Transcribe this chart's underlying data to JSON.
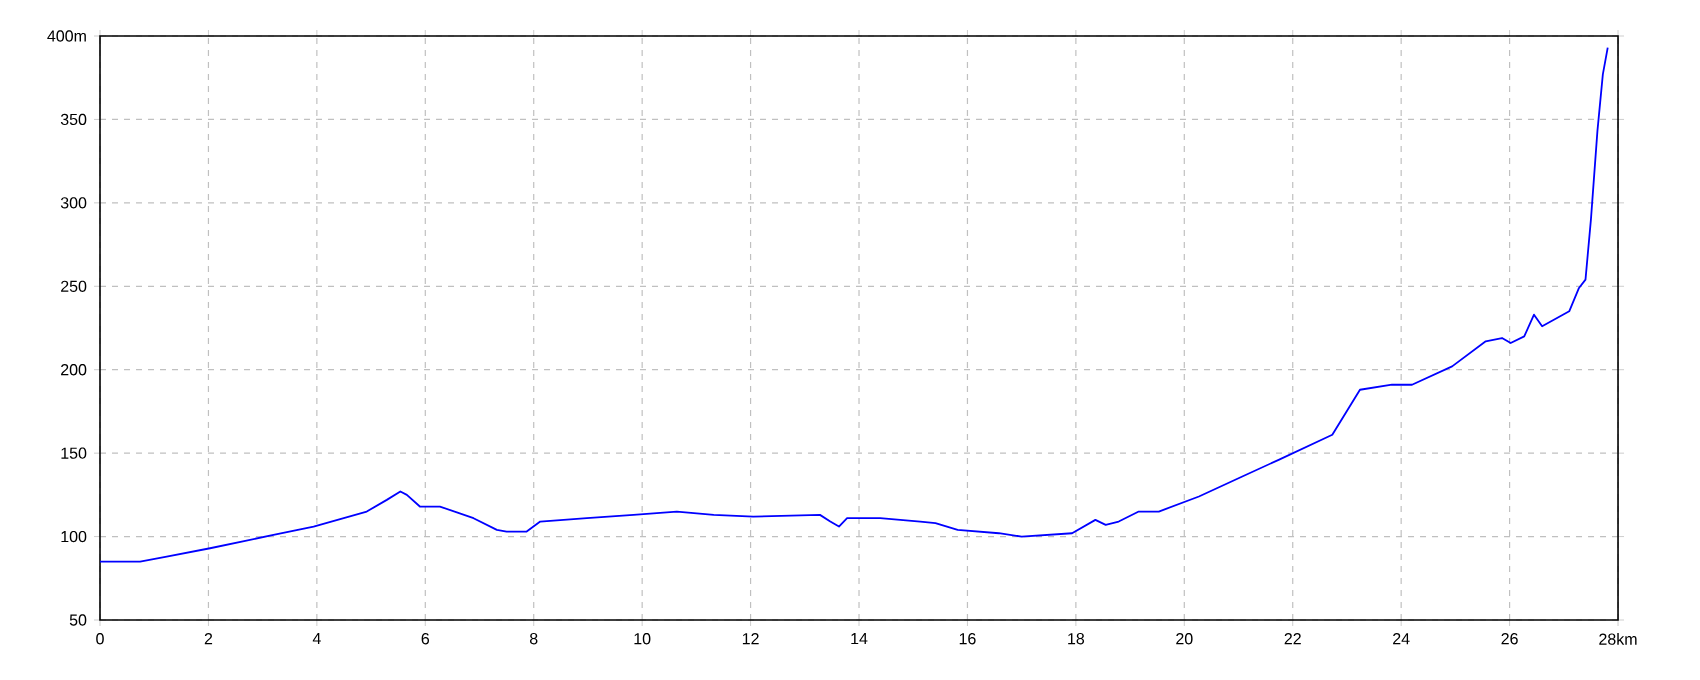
{
  "chart_data": {
    "type": "line",
    "xlim": [
      0,
      28
    ],
    "ylim": [
      50,
      400
    ],
    "xticks": [
      0,
      2,
      4,
      6,
      8,
      10,
      12,
      14,
      16,
      18,
      20,
      22,
      24,
      26,
      {
        "value": 28,
        "label": "28km"
      }
    ],
    "yticks": [
      50,
      100,
      150,
      200,
      250,
      300,
      350,
      {
        "value": 400,
        "label": "400m"
      }
    ],
    "grid": true,
    "marker": "none",
    "line_style": "solid",
    "series": [
      {
        "color": "#0000ff",
        "x": [
          0,
          0.74,
          1.23,
          2.03,
          3.2,
          3.94,
          4.92,
          5.29,
          5.54,
          5.66,
          5.9,
          6.27,
          6.89,
          7.32,
          7.5,
          7.87,
          8.12,
          8.98,
          9.84,
          10.64,
          11.32,
          12.05,
          13.28,
          13.47,
          13.63,
          13.78,
          14.39,
          15.13,
          15.41,
          15.82,
          16.58,
          17.0,
          17.93,
          18.36,
          18.55,
          18.79,
          19.16,
          19.53,
          20.27,
          21.07,
          21.74,
          22.73,
          23.24,
          23.83,
          24.2,
          24.94,
          25.56,
          25.86,
          26.02,
          26.27,
          26.45,
          26.6,
          27.1,
          27.28,
          27.4,
          27.5,
          27.62,
          27.72,
          27.81
        ],
        "values": [
          85,
          85,
          88,
          93,
          101,
          106,
          115,
          122,
          127,
          125,
          118,
          118,
          111,
          104,
          103,
          103,
          109,
          111,
          113,
          115,
          113,
          112,
          113,
          109,
          106,
          111,
          111,
          109,
          108,
          104,
          102,
          100,
          102,
          110,
          107,
          109,
          115,
          115,
          124,
          136,
          146,
          161,
          188,
          191,
          191,
          202,
          217,
          219,
          216,
          220,
          233,
          226,
          235,
          249,
          254,
          290,
          343,
          377,
          393
        ]
      }
    ]
  }
}
